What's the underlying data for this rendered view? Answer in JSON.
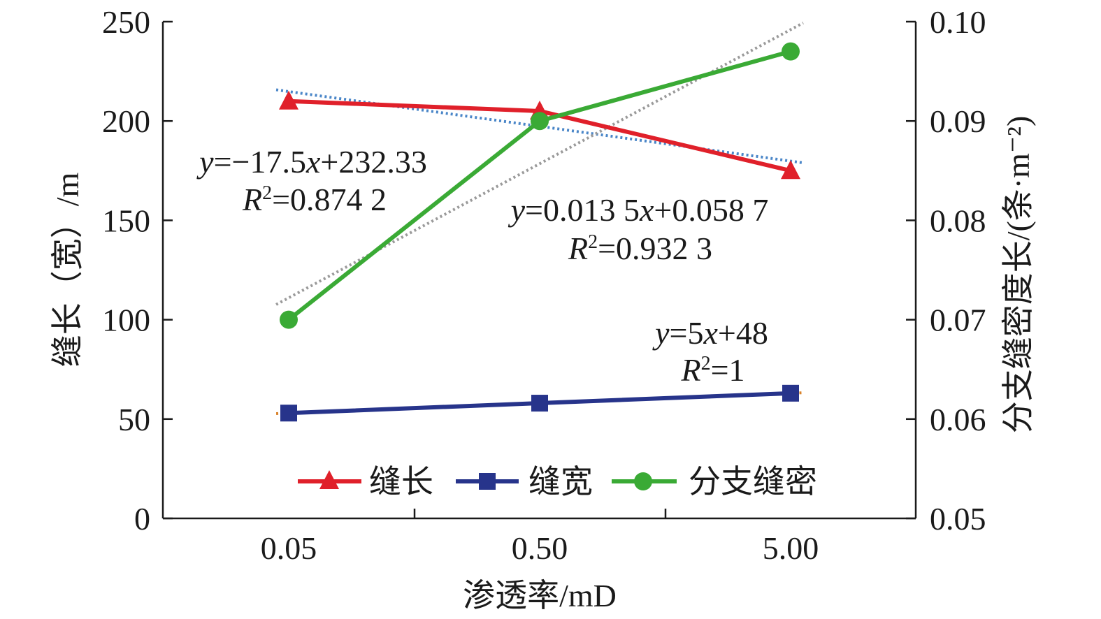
{
  "chart_data": {
    "type": "line",
    "categories": [
      "0.05",
      "0.50",
      "5.00"
    ],
    "xlabel": "渗透率/mD",
    "ylabel_left": "缝长（宽）/m",
    "ylabel_right": "分支缝密度长/(条·m⁻²)",
    "ylim_left": [
      0,
      250
    ],
    "ylim_right": [
      0.05,
      0.1
    ],
    "left_ticks": [
      "0",
      "50",
      "100",
      "150",
      "200",
      "250"
    ],
    "right_ticks": [
      "0.05",
      "0.06",
      "0.07",
      "0.08",
      "0.09",
      "0.10"
    ],
    "legend_position": "bottom-center",
    "series": [
      {
        "name": "缝长",
        "axis": "left",
        "marker": "triangle",
        "color": "#e0202a",
        "values": [
          210,
          205,
          175
        ]
      },
      {
        "name": "缝宽",
        "axis": "left",
        "marker": "square",
        "color": "#27348b",
        "values": [
          53,
          58,
          63
        ]
      },
      {
        "name": "分支缝密",
        "axis": "right",
        "marker": "circle",
        "color": "#3aaa35",
        "values": [
          0.07,
          0.09,
          0.097
        ]
      }
    ],
    "trendlines": [
      {
        "series": "缝长",
        "axis": "left",
        "slope": -17.5,
        "intercept": 232.33,
        "color": "#4a86c8"
      },
      {
        "series": "缝宽",
        "axis": "left",
        "slope": 5,
        "intercept": 48,
        "color": "#d9822b"
      },
      {
        "series": "分支缝密",
        "axis": "right",
        "slope": 0.0135,
        "intercept": 0.0587,
        "color": "#9a9a9a"
      }
    ],
    "annotations": {
      "length": {
        "y_prefix": "y",
        "y_eq": "=−17.5",
        "x_var": "x",
        "x_rest": "+232.33",
        "r_prefix": "R",
        "r_sup": "2",
        "r_val": "=0.874 2"
      },
      "density": {
        "y_prefix": "y",
        "y_eq": "=0.013 5",
        "x_var": "x",
        "x_rest": "+0.058 7",
        "r_prefix": "R",
        "r_sup": "2",
        "r_val": "=0.932 3"
      },
      "width": {
        "y_prefix": "y",
        "y_eq": "=5",
        "x_var": "x",
        "x_rest": "+48",
        "r_prefix": "R",
        "r_sup": "2",
        "r_val": "=1"
      }
    }
  }
}
